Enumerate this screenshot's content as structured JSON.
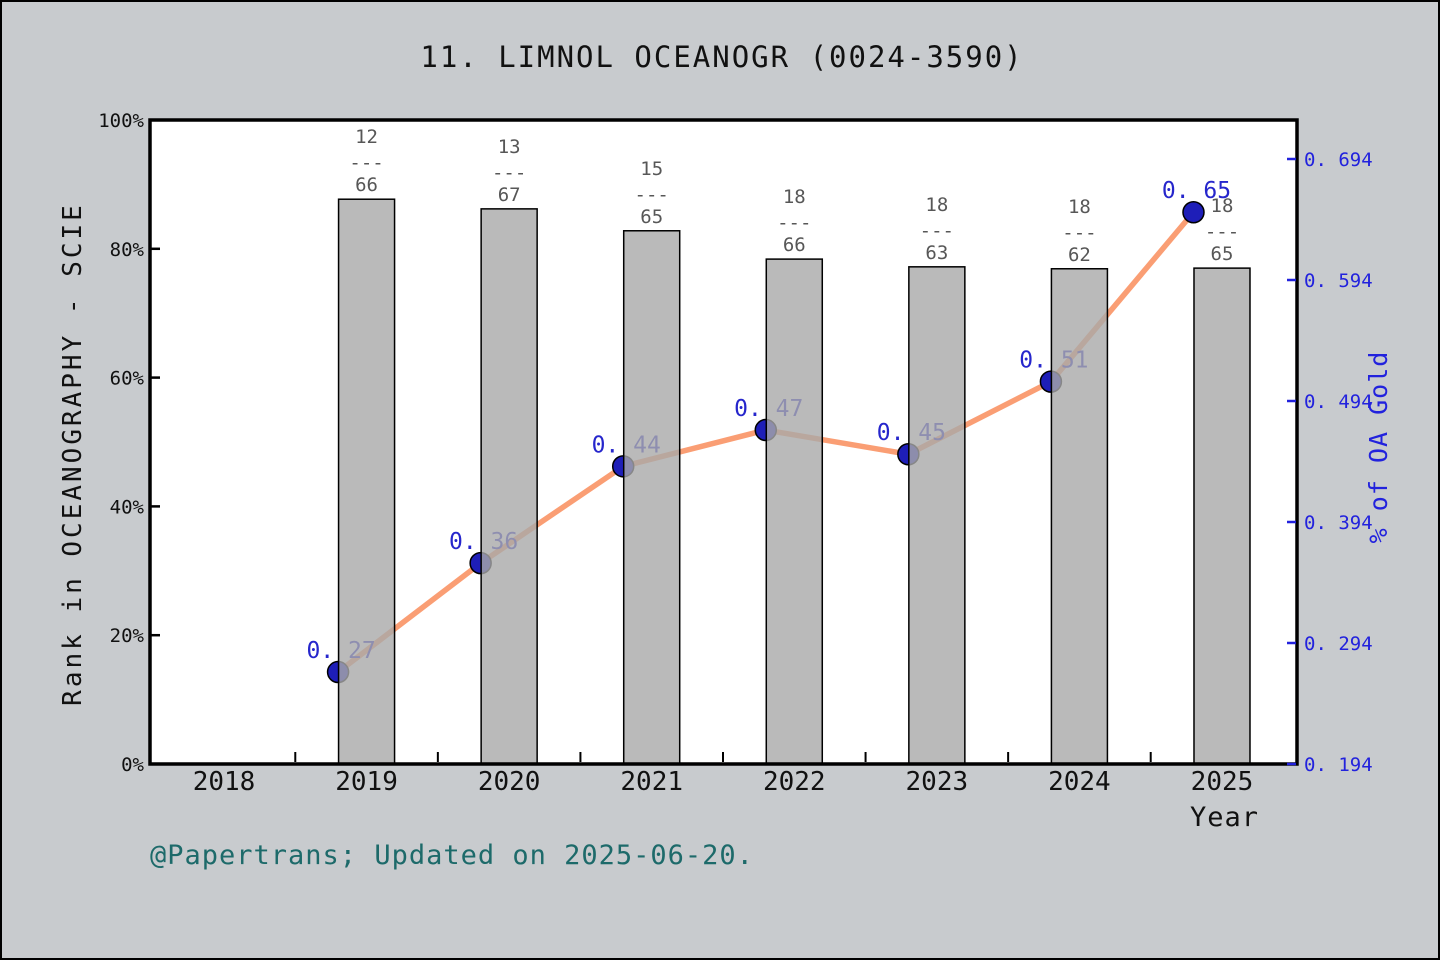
{
  "window": {
    "background": "#c8cbce",
    "border_color": "#000000"
  },
  "chart_data": {
    "type": "bar",
    "overlay": "line",
    "title": "11. LIMNOL OCEANOGR (0024-3590)",
    "xlabel": "Year",
    "grid": "off",
    "legend": "none",
    "x_axis": {
      "tick_labels": [
        "2018",
        "2019",
        "2020",
        "2021",
        "2022",
        "2023",
        "2024",
        "2025"
      ],
      "tick_values": [
        2018,
        2019,
        2020,
        2021,
        2022,
        2023,
        2024,
        2025
      ],
      "minor_ticks": [
        2018.5,
        2019.5,
        2020.5,
        2021.5,
        2022.5,
        2023.5,
        2024.5
      ],
      "range": [
        2017.48,
        2025.52
      ]
    },
    "left_axis": {
      "label": "Rank in OCEANOGRAPHY - SCIE",
      "tick_labels": [
        "0%",
        "20%",
        "40%",
        "60%",
        "80%",
        "100%"
      ],
      "tick_values": [
        0,
        20,
        40,
        60,
        80,
        100
      ],
      "range": [
        0,
        100
      ],
      "color": "#111111"
    },
    "right_axis": {
      "label": "% of OA Gold",
      "tick_labels": [
        "0. 194",
        "0. 294",
        "0. 394",
        "0. 494",
        "0. 594",
        "0. 694"
      ],
      "tick_values": [
        0.194,
        0.294,
        0.394,
        0.494,
        0.594,
        0.694
      ],
      "range": [
        0.194,
        0.726
      ],
      "color": "#2222dd"
    },
    "bars": {
      "name": "Rank in OCEANOGRAPHY - SCIE",
      "years": [
        2019,
        2020,
        2021,
        2022,
        2023,
        2024,
        2025
      ],
      "rank_percent": [
        87.7,
        86.2,
        82.8,
        78.4,
        77.2,
        76.9,
        77.0
      ],
      "fraction_separator": "---",
      "fraction_labels": [
        {
          "numerator": "12",
          "denominator": "66"
        },
        {
          "numerator": "13",
          "denominator": "67"
        },
        {
          "numerator": "15",
          "denominator": "65"
        },
        {
          "numerator": "18",
          "denominator": "66"
        },
        {
          "numerator": "18",
          "denominator": "63"
        },
        {
          "numerator": "18",
          "denominator": "62"
        },
        {
          "numerator": "18",
          "denominator": "65"
        }
      ],
      "bar_color": "#a9a9a9",
      "bar_edge_color": "#000000",
      "label_color": "#575757"
    },
    "line": {
      "name": "% of OA Gold",
      "years": [
        2019,
        2020,
        2021,
        2022,
        2023,
        2024,
        2025
      ],
      "values": [
        0.27,
        0.36,
        0.44,
        0.47,
        0.45,
        0.51,
        0.65
      ],
      "point_labels": [
        "0. 27",
        "0. 36",
        "0. 44",
        "0. 47",
        "0. 45",
        "0. 51",
        "0. 65"
      ],
      "line_color": "#fa9e74",
      "marker_color": "#1e1eb8",
      "marker_edge_color": "#000000",
      "label_color": "#2626cc"
    }
  },
  "footer": {
    "text": "@Papertrans; Updated on 2025-06-20."
  }
}
